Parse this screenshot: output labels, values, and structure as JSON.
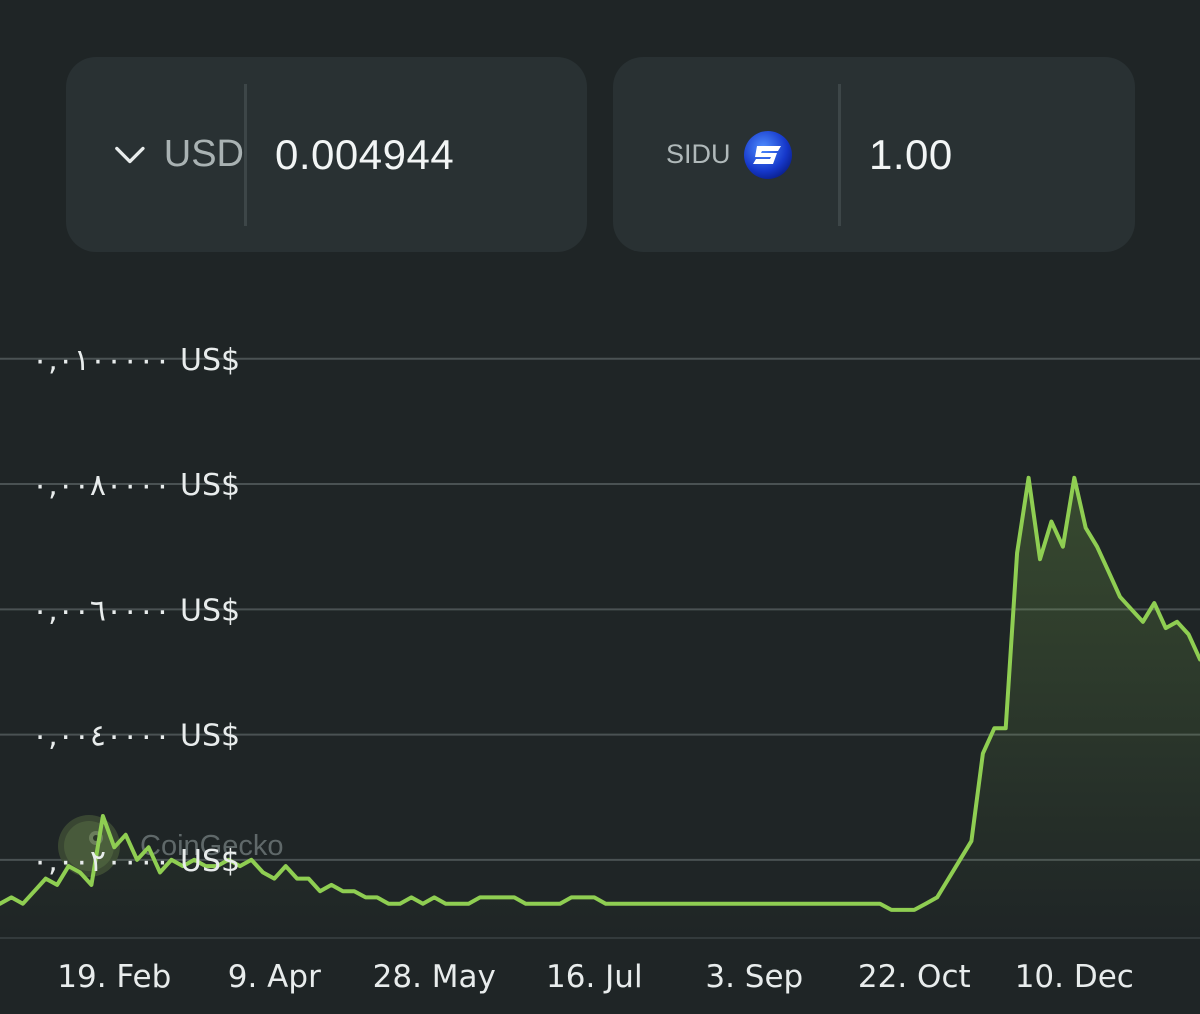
{
  "converter": {
    "fiat": {
      "code": "USD",
      "value": "0.004944",
      "icon": "chevron-down-icon"
    },
    "coin": {
      "code": "SIDU",
      "value": "1.00",
      "icon": "sidus-logo-icon",
      "logo_color": "#1f4fd8"
    }
  },
  "watermark": {
    "text": "CoinGecko",
    "icon": "coingecko-gecko-icon"
  },
  "colors": {
    "background": "#1f2526",
    "card": "#293133",
    "line": "#8fce52",
    "grid": "#4a5253"
  },
  "chart_data": {
    "type": "area",
    "title": "",
    "xlabel": "",
    "ylabel": "",
    "ylim": [
      0.0008,
      0.0103
    ],
    "grid": true,
    "legend": "none",
    "y_ticks": [
      {
        "value": 0.002,
        "label": "٠,٠٠٢٠٠٠٠ US$"
      },
      {
        "value": 0.004,
        "label": "٠,٠٠٤٠٠٠٠ US$"
      },
      {
        "value": 0.006,
        "label": "٠,٠٠٦٠٠٠٠ US$"
      },
      {
        "value": 0.008,
        "label": "٠,٠٠٨٠٠٠٠ US$"
      },
      {
        "value": 0.01,
        "label": "٠,٠١٠٠٠٠٠ US$"
      }
    ],
    "x_ticks": [
      {
        "index": 10,
        "label": "19. Feb"
      },
      {
        "index": 24,
        "label": "9. Apr"
      },
      {
        "index": 38,
        "label": "28. May"
      },
      {
        "index": 52,
        "label": "16. Jul"
      },
      {
        "index": 66,
        "label": "3. Sep"
      },
      {
        "index": 80,
        "label": "22. Oct"
      },
      {
        "index": 94,
        "label": "10. Dec"
      }
    ],
    "series": [
      {
        "name": "",
        "values": [
          0.0013,
          0.0014,
          0.0013,
          0.0015,
          0.0017,
          0.0016,
          0.0019,
          0.0018,
          0.0016,
          0.0027,
          0.0022,
          0.0024,
          0.002,
          0.0022,
          0.0018,
          0.002,
          0.0019,
          0.002,
          0.0019,
          0.0019,
          0.002,
          0.0019,
          0.002,
          0.0018,
          0.0017,
          0.0019,
          0.0017,
          0.0017,
          0.0015,
          0.0016,
          0.0015,
          0.0015,
          0.0014,
          0.0014,
          0.0013,
          0.0013,
          0.0014,
          0.0013,
          0.0014,
          0.0013,
          0.0013,
          0.0013,
          0.0014,
          0.0014,
          0.0014,
          0.0014,
          0.0013,
          0.0013,
          0.0013,
          0.0013,
          0.0014,
          0.0014,
          0.0014,
          0.0013,
          0.0013,
          0.0013,
          0.0013,
          0.0013,
          0.0013,
          0.0013,
          0.0013,
          0.0013,
          0.0013,
          0.0013,
          0.0013,
          0.0013,
          0.0013,
          0.0013,
          0.0013,
          0.0013,
          0.0013,
          0.0013,
          0.0013,
          0.0013,
          0.0013,
          0.0013,
          0.0013,
          0.0013,
          0.0012,
          0.0012,
          0.0012,
          0.0013,
          0.0014,
          0.0017,
          0.002,
          0.0023,
          0.0037,
          0.0041,
          0.0041,
          0.0069,
          0.0081,
          0.0068,
          0.0074,
          0.007,
          0.0081,
          0.0073,
          0.007,
          0.0066,
          0.0062,
          0.006,
          0.0058,
          0.0061,
          0.0057,
          0.0058,
          0.0056,
          0.0052
        ]
      }
    ]
  }
}
